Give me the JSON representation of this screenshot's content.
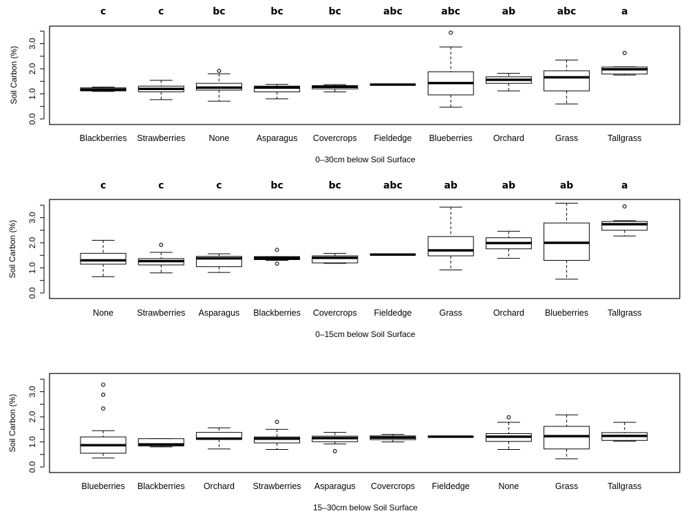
{
  "chart_data": [
    {
      "type": "box",
      "xlabel": "0–30cm below Soil Surface",
      "ylabel": "Soil Carbon (%)",
      "ylim": [
        0,
        3.6
      ],
      "yticks": [
        "0.0",
        "1.0",
        "2.0",
        "3.0"
      ],
      "categories": [
        "Blackberries",
        "Strawberries",
        "None",
        "Asparagus",
        "Covercrops",
        "Fieldedge",
        "Blueberries",
        "Orchard",
        "Grass",
        "Tallgrass"
      ],
      "letters": [
        "c",
        "c",
        "bc",
        "bc",
        "bc",
        "abc",
        "abc",
        "ab",
        "abc",
        "a"
      ],
      "boxes": [
        {
          "min": 1.1,
          "q1": 1.12,
          "median": 1.17,
          "q3": 1.24,
          "max": 1.27,
          "outliers": []
        },
        {
          "min": 0.77,
          "q1": 1.08,
          "median": 1.2,
          "q3": 1.31,
          "max": 1.54,
          "outliers": []
        },
        {
          "min": 0.71,
          "q1": 1.15,
          "median": 1.25,
          "q3": 1.42,
          "max": 1.8,
          "outliers": [
            1.92
          ]
        },
        {
          "min": 0.8,
          "q1": 1.08,
          "median": 1.25,
          "q3": 1.31,
          "max": 1.38,
          "outliers": []
        },
        {
          "min": 1.08,
          "q1": 1.2,
          "median": 1.28,
          "q3": 1.33,
          "max": 1.37,
          "outliers": []
        },
        {
          "min": 1.36,
          "q1": 1.36,
          "median": 1.37,
          "q3": 1.38,
          "max": 1.38,
          "outliers": []
        },
        {
          "min": 0.47,
          "q1": 0.96,
          "median": 1.43,
          "q3": 1.88,
          "max": 2.87,
          "outliers": [
            3.44
          ]
        },
        {
          "min": 1.12,
          "q1": 1.42,
          "median": 1.56,
          "q3": 1.68,
          "max": 1.82,
          "outliers": []
        },
        {
          "min": 0.6,
          "q1": 1.12,
          "median": 1.66,
          "q3": 1.92,
          "max": 2.35,
          "outliers": []
        },
        {
          "min": 1.75,
          "q1": 1.79,
          "median": 1.98,
          "q3": 2.07,
          "max": 2.08,
          "outliers": [
            2.63
          ]
        }
      ]
    },
    {
      "type": "box",
      "xlabel": "0–15cm below Soil Surface",
      "ylabel": "Soil Carbon (%)",
      "ylim": [
        0,
        3.6
      ],
      "yticks": [
        "0.0",
        "1.0",
        "2.0",
        "3.0"
      ],
      "categories": [
        "None",
        "Strawberries",
        "Asparagus",
        "Blackberries",
        "Covercrops",
        "Fieldedge",
        "Grass",
        "Orchard",
        "Blueberries",
        "Tallgrass"
      ],
      "letters": [
        "c",
        "c",
        "c",
        "bc",
        "bc",
        "abc",
        "ab",
        "ab",
        "ab",
        "a"
      ],
      "boxes": [
        {
          "min": 0.65,
          "q1": 1.15,
          "median": 1.3,
          "q3": 1.58,
          "max": 2.1,
          "outliers": []
        },
        {
          "min": 0.8,
          "q1": 1.12,
          "median": 1.27,
          "q3": 1.37,
          "max": 1.62,
          "outliers": [
            1.92
          ]
        },
        {
          "min": 0.82,
          "q1": 1.05,
          "median": 1.38,
          "q3": 1.46,
          "max": 1.56,
          "outliers": []
        },
        {
          "min": 1.3,
          "q1": 1.33,
          "median": 1.39,
          "q3": 1.45,
          "max": 1.45,
          "outliers": [
            1.72,
            1.17
          ]
        },
        {
          "min": 1.18,
          "q1": 1.2,
          "median": 1.4,
          "q3": 1.48,
          "max": 1.58,
          "outliers": []
        },
        {
          "min": 1.51,
          "q1": 1.52,
          "median": 1.53,
          "q3": 1.54,
          "max": 1.54,
          "outliers": []
        },
        {
          "min": 0.92,
          "q1": 1.48,
          "median": 1.7,
          "q3": 2.25,
          "max": 3.42,
          "outliers": []
        },
        {
          "min": 1.38,
          "q1": 1.76,
          "median": 1.99,
          "q3": 2.2,
          "max": 2.46,
          "outliers": []
        },
        {
          "min": 0.55,
          "q1": 1.3,
          "median": 2.0,
          "q3": 2.79,
          "max": 3.58,
          "outliers": []
        },
        {
          "min": 2.27,
          "q1": 2.5,
          "median": 2.74,
          "q3": 2.85,
          "max": 2.88,
          "outliers": [
            3.45
          ]
        }
      ]
    },
    {
      "type": "box",
      "xlabel": "15–30cm below Soil Surface",
      "ylabel": "Soil Carbon (%)",
      "ylim": [
        0,
        3.6
      ],
      "yticks": [
        "0.0",
        "1.0",
        "2.0",
        "3.0"
      ],
      "categories": [
        "Blueberries",
        "Blackberries",
        "Orchard",
        "Strawberries",
        "Asparagus",
        "Covercrops",
        "Fieldedge",
        "None",
        "Grass",
        "Tallgrass"
      ],
      "letters": [],
      "boxes": [
        {
          "min": 0.36,
          "q1": 0.55,
          "median": 0.87,
          "q3": 1.2,
          "max": 1.45,
          "outliers": [
            3.28,
            2.88,
            2.33
          ]
        },
        {
          "min": 0.8,
          "q1": 0.84,
          "median": 0.9,
          "q3": 1.13,
          "max": 1.13,
          "outliers": []
        },
        {
          "min": 0.72,
          "q1": 1.1,
          "median": 1.13,
          "q3": 1.38,
          "max": 1.56,
          "outliers": []
        },
        {
          "min": 0.7,
          "q1": 0.96,
          "median": 1.13,
          "q3": 1.2,
          "max": 1.5,
          "outliers": [
            1.8
          ]
        },
        {
          "min": 0.92,
          "q1": 1.01,
          "median": 1.15,
          "q3": 1.23,
          "max": 1.38,
          "outliers": [
            0.63
          ]
        },
        {
          "min": 1.0,
          "q1": 1.09,
          "median": 1.17,
          "q3": 1.24,
          "max": 1.3,
          "outliers": []
        },
        {
          "min": 1.2,
          "q1": 1.2,
          "median": 1.21,
          "q3": 1.22,
          "max": 1.22,
          "outliers": []
        },
        {
          "min": 0.7,
          "q1": 1.02,
          "median": 1.21,
          "q3": 1.33,
          "max": 1.78,
          "outliers": [
            1.98
          ]
        },
        {
          "min": 0.33,
          "q1": 0.72,
          "median": 1.23,
          "q3": 1.62,
          "max": 2.08,
          "outliers": []
        },
        {
          "min": 1.03,
          "q1": 1.06,
          "median": 1.24,
          "q3": 1.37,
          "max": 1.78,
          "outliers": []
        }
      ]
    }
  ]
}
